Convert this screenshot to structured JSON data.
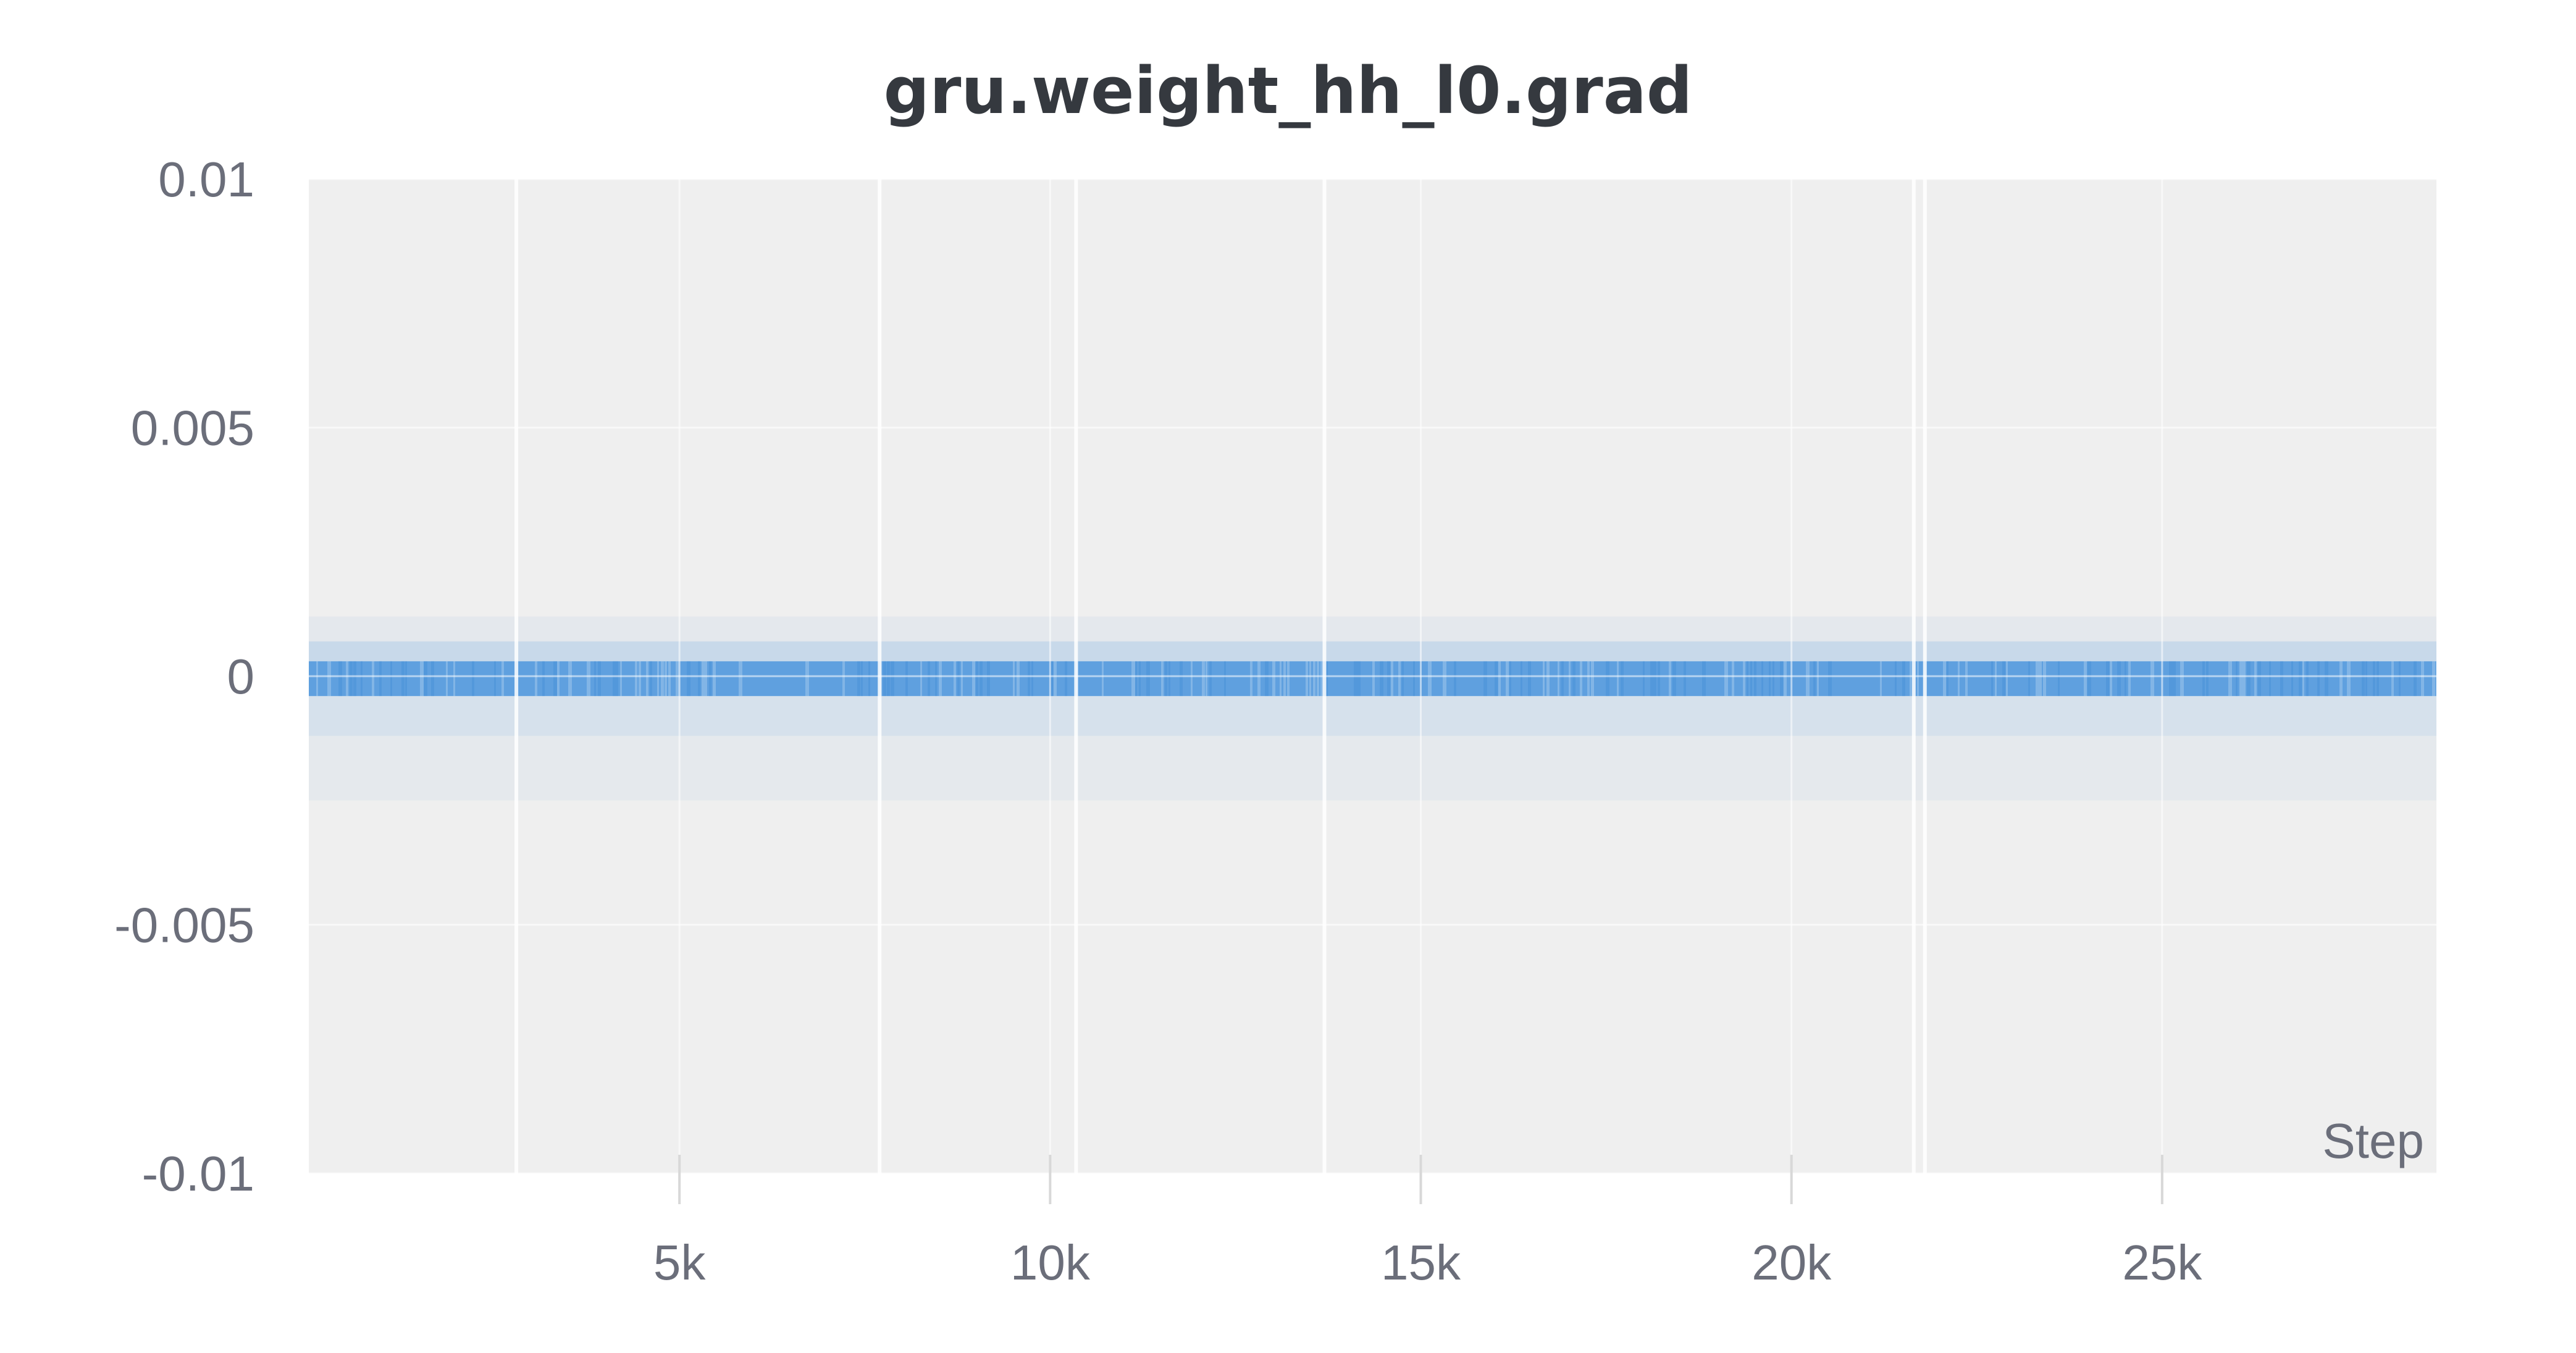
{
  "chart_data": {
    "type": "heatmap",
    "title": "gru.weight_hh_l0.grad",
    "xlabel": "Step",
    "ylabel": "",
    "xlim": [
      0,
      28700
    ],
    "ylim": [
      -0.01,
      0.01
    ],
    "x_ticks": [
      {
        "value": 5000,
        "label": "5k"
      },
      {
        "value": 10000,
        "label": "10k"
      },
      {
        "value": 15000,
        "label": "15k"
      },
      {
        "value": 20000,
        "label": "20k"
      },
      {
        "value": 25000,
        "label": "25k"
      }
    ],
    "y_ticks": [
      {
        "value": 0.01,
        "label": "0.01"
      },
      {
        "value": 0.005,
        "label": "0.005"
      },
      {
        "value": 0,
        "label": "0"
      },
      {
        "value": -0.005,
        "label": "-0.005"
      },
      {
        "value": -0.01,
        "label": "-0.01"
      }
    ],
    "grid": true,
    "legend": "none",
    "bands": [
      {
        "y_from": -0.0004,
        "y_to": 0.0003,
        "density": "high",
        "opacity": 0.82
      },
      {
        "y_from": 0.0003,
        "y_to": 0.0007,
        "density": "low",
        "opacity": 0.22
      },
      {
        "y_from": -0.0012,
        "y_to": -0.0004,
        "density": "low",
        "opacity": 0.14
      },
      {
        "y_from": 0.0007,
        "y_to": 0.0012,
        "density": "very low",
        "opacity": 0.06
      },
      {
        "y_from": -0.0025,
        "y_to": -0.0012,
        "density": "very low",
        "opacity": 0.05
      }
    ],
    "gap_steps": [
      2800,
      7700,
      10350,
      13700,
      21650,
      21800
    ],
    "colors": {
      "background": "#efefef",
      "density": "#3f8fdc",
      "gridline": "#ffffff",
      "text": "#6b6e7a",
      "title": "#35393f"
    }
  }
}
